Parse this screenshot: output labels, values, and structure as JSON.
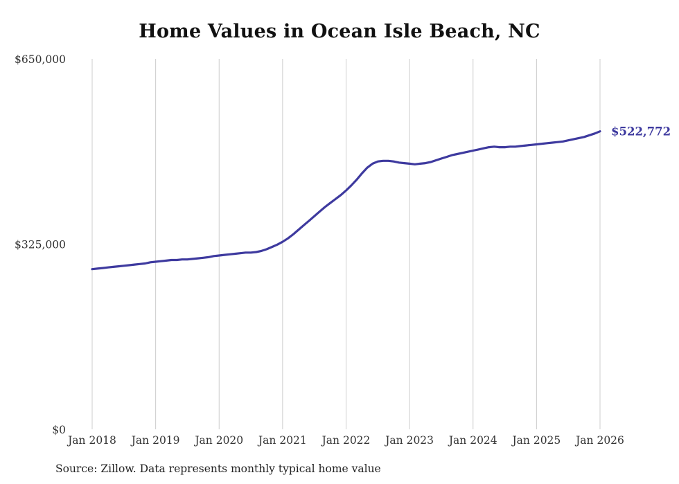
{
  "footer": {
    "source": "Source: Zillow. Data represents monthly typical home value"
  },
  "chart_data": {
    "type": "line",
    "title": "Home Values in Ocean Isle Beach, NC",
    "series_name": "Monthly typical home value",
    "xlabel": "",
    "ylabel": "",
    "ylim": [
      0,
      650000
    ],
    "y_ticks": [
      0,
      325000,
      650000
    ],
    "y_tick_labels": [
      "$0",
      "$325,000",
      "$650,000"
    ],
    "x_tick_labels": [
      "Jan 2018",
      "Jan 2019",
      "Jan 2020",
      "Jan 2021",
      "Jan 2022",
      "Jan 2023",
      "Jan 2024",
      "Jan 2025",
      "Jan 2026"
    ],
    "grid": "vertical-only",
    "legend": "none",
    "end_label": "$522,772",
    "end_value": 522772,
    "line_color": "#3e3a9f",
    "grid_color": "#cccccc",
    "x": [
      "2018-01",
      "2018-02",
      "2018-03",
      "2018-04",
      "2018-05",
      "2018-06",
      "2018-07",
      "2018-08",
      "2018-09",
      "2018-10",
      "2018-11",
      "2018-12",
      "2019-01",
      "2019-02",
      "2019-03",
      "2019-04",
      "2019-05",
      "2019-06",
      "2019-07",
      "2019-08",
      "2019-09",
      "2019-10",
      "2019-11",
      "2019-12",
      "2020-01",
      "2020-02",
      "2020-03",
      "2020-04",
      "2020-05",
      "2020-06",
      "2020-07",
      "2020-08",
      "2020-09",
      "2020-10",
      "2020-11",
      "2020-12",
      "2021-01",
      "2021-02",
      "2021-03",
      "2021-04",
      "2021-05",
      "2021-06",
      "2021-07",
      "2021-08",
      "2021-09",
      "2021-10",
      "2021-11",
      "2021-12",
      "2022-01",
      "2022-02",
      "2022-03",
      "2022-04",
      "2022-05",
      "2022-06",
      "2022-07",
      "2022-08",
      "2022-09",
      "2022-10",
      "2022-11",
      "2022-12",
      "2023-01",
      "2023-02",
      "2023-03",
      "2023-04",
      "2023-05",
      "2023-06",
      "2023-07",
      "2023-08",
      "2023-09",
      "2023-10",
      "2023-11",
      "2023-12",
      "2024-01",
      "2024-02",
      "2024-03",
      "2024-04",
      "2024-05",
      "2024-06",
      "2024-07",
      "2024-08",
      "2024-09",
      "2024-10",
      "2024-11",
      "2024-12",
      "2025-01",
      "2025-02",
      "2025-03",
      "2025-04",
      "2025-05",
      "2025-06",
      "2025-07",
      "2025-08",
      "2025-09",
      "2025-10",
      "2025-11",
      "2025-12",
      "2026-01"
    ],
    "values": [
      281000,
      282000,
      283000,
      284000,
      285000,
      286000,
      287000,
      288000,
      289000,
      290000,
      291000,
      293000,
      294000,
      295000,
      296000,
      297000,
      297000,
      298000,
      298000,
      299000,
      300000,
      301000,
      302000,
      304000,
      305000,
      306000,
      307000,
      308000,
      309000,
      310000,
      310000,
      311000,
      313000,
      316000,
      320000,
      324000,
      329000,
      335000,
      342000,
      350000,
      358000,
      366000,
      374000,
      382000,
      390000,
      397000,
      404000,
      411000,
      419000,
      428000,
      438000,
      449000,
      459000,
      466000,
      470000,
      471000,
      471000,
      470000,
      468000,
      467000,
      466000,
      465000,
      466000,
      467000,
      469000,
      472000,
      475000,
      478000,
      481000,
      483000,
      485000,
      487000,
      489000,
      491000,
      493000,
      495000,
      496000,
      495000,
      495000,
      496000,
      496000,
      497000,
      498000,
      499000,
      500000,
      501000,
      502000,
      503000,
      504000,
      505000,
      507000,
      509000,
      511000,
      513000,
      516000,
      519000,
      522772
    ]
  }
}
